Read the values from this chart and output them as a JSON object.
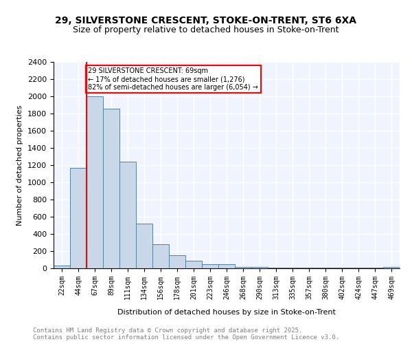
{
  "title1": "29, SILVERSTONE CRESCENT, STOKE-ON-TRENT, ST6 6XA",
  "title2": "Size of property relative to detached houses in Stoke-on-Trent",
  "xlabel": "Distribution of detached houses by size in Stoke-on-Trent",
  "ylabel": "Number of detached properties",
  "bar_labels": [
    "22sqm",
    "44sqm",
    "67sqm",
    "89sqm",
    "111sqm",
    "134sqm",
    "156sqm",
    "178sqm",
    "201sqm",
    "223sqm",
    "246sqm",
    "268sqm",
    "290sqm",
    "313sqm",
    "335sqm",
    "357sqm",
    "380sqm",
    "402sqm",
    "424sqm",
    "447sqm",
    "469sqm"
  ],
  "bar_values": [
    30,
    1170,
    2000,
    1860,
    1240,
    520,
    280,
    155,
    90,
    45,
    45,
    20,
    20,
    10,
    5,
    5,
    5,
    5,
    5,
    5,
    20
  ],
  "bar_color": "#c8d8e8",
  "bar_edge_color": "#5580a0",
  "background_color": "#f0f4ff",
  "grid_color": "white",
  "vline_x": 2,
  "vline_color": "red",
  "annotation_text": "29 SILVERSTONE CRESCENT: 69sqm\n← 17% of detached houses are smaller (1,276)\n82% of semi-detached houses are larger (6,054) →",
  "annotation_box_color": "white",
  "annotation_box_edge": "red",
  "ylim": [
    0,
    2400
  ],
  "yticks": [
    0,
    200,
    400,
    600,
    800,
    1000,
    1200,
    1400,
    1600,
    1800,
    2000,
    2200,
    2400
  ],
  "footer_line1": "Contains HM Land Registry data © Crown copyright and database right 2025.",
  "footer_line2": "Contains public sector information licensed under the Open Government Licence v3.0."
}
